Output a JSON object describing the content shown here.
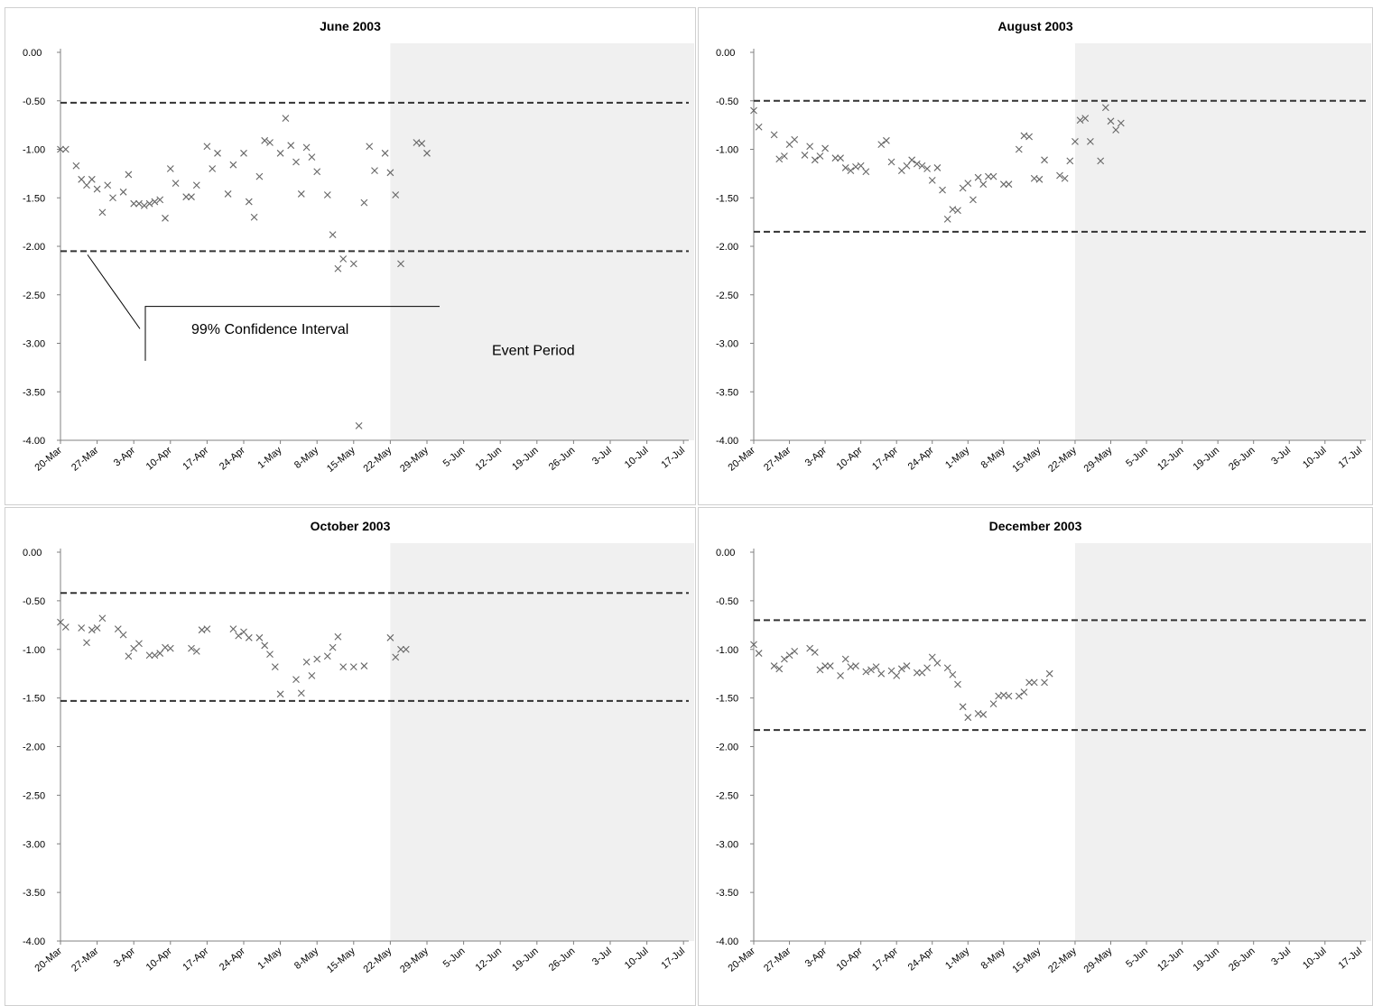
{
  "chart_data": [
    {
      "type": "scatter",
      "title": "June 2003",
      "x_ticks": [
        "20-Mar",
        "27-Mar",
        "3-Apr",
        "10-Apr",
        "17-Apr",
        "24-Apr",
        "1-May",
        "8-May",
        "15-May",
        "22-May",
        "29-May",
        "5-Jun",
        "12-Jun",
        "19-Jun",
        "26-Jun",
        "3-Jul",
        "10-Jul",
        "17-Jul"
      ],
      "y_ticks": [
        "0.00",
        "-0.50",
        "-1.00",
        "-1.50",
        "-2.00",
        "-2.50",
        "-3.00",
        "-3.50",
        "-4.00"
      ],
      "ylim": [
        -4.0,
        0.0
      ],
      "ci_upper": -0.52,
      "ci_lower": -2.05,
      "event_start_day": 63,
      "annotations": [
        "99% Confidence Interval",
        "Event Period"
      ],
      "series": [
        {
          "x_day": [
            0,
            1,
            3,
            4,
            5,
            6,
            7,
            8,
            9,
            10,
            12,
            13,
            14,
            15,
            16,
            17,
            18,
            19,
            20,
            21,
            22,
            24,
            25,
            26,
            28,
            29,
            30,
            32,
            33,
            35,
            36,
            37,
            38,
            39,
            40,
            42,
            43,
            44,
            45,
            46,
            47,
            48,
            49,
            51,
            52,
            53,
            54,
            56,
            57,
            58,
            59,
            60,
            62,
            63,
            64,
            65,
            68,
            69,
            70
          ],
          "y": [
            -1.0,
            -1.0,
            -1.17,
            -1.31,
            -1.37,
            -1.31,
            -1.41,
            -1.65,
            -1.37,
            -1.5,
            -1.44,
            -1.26,
            -1.56,
            -1.56,
            -1.58,
            -1.56,
            -1.54,
            -1.52,
            -1.71,
            -1.2,
            -1.35,
            -1.49,
            -1.49,
            -1.37,
            -0.97,
            -1.2,
            -1.04,
            -1.46,
            -1.16,
            -1.04,
            -1.54,
            -1.7,
            -1.28,
            -0.91,
            -0.93,
            -1.04,
            -0.68,
            -0.96,
            -1.13,
            -1.46,
            -0.98,
            -1.08,
            -1.23,
            -1.47,
            -1.88,
            -2.23,
            -2.13,
            -2.18,
            -3.85,
            -1.55,
            -0.97,
            -1.22,
            -1.04,
            -1.24,
            -1.47,
            -2.18,
            -0.93,
            -0.94,
            -1.04
          ]
        }
      ]
    },
    {
      "type": "scatter",
      "title": "August 2003",
      "x_ticks": [
        "20-Mar",
        "27-Mar",
        "3-Apr",
        "10-Apr",
        "17-Apr",
        "24-Apr",
        "1-May",
        "8-May",
        "15-May",
        "22-May",
        "29-May",
        "5-Jun",
        "12-Jun",
        "19-Jun",
        "26-Jun",
        "3-Jul",
        "10-Jul",
        "17-Jul"
      ],
      "y_ticks": [
        "0.00",
        "-0.50",
        "-1.00",
        "-1.50",
        "-2.00",
        "-2.50",
        "-3.00",
        "-3.50",
        "-4.00"
      ],
      "ylim": [
        -4.0,
        0.0
      ],
      "ci_upper": -0.5,
      "ci_lower": -1.85,
      "event_start_day": 63,
      "annotations": [],
      "series": [
        {
          "x_day": [
            0,
            1,
            4,
            5,
            6,
            7,
            8,
            10,
            11,
            12,
            13,
            14,
            16,
            17,
            18,
            19,
            20,
            21,
            22,
            25,
            26,
            27,
            29,
            30,
            31,
            32,
            33,
            34,
            35,
            36,
            37,
            38,
            39,
            40,
            41,
            42,
            43,
            44,
            45,
            46,
            47,
            49,
            50,
            52,
            53,
            54,
            55,
            56,
            57,
            60,
            61,
            62,
            63,
            64,
            65,
            66,
            68,
            69,
            70,
            71,
            72
          ],
          "y": [
            -0.6,
            -0.77,
            -0.85,
            -1.1,
            -1.07,
            -0.95,
            -0.9,
            -1.06,
            -0.97,
            -1.11,
            -1.07,
            -0.99,
            -1.09,
            -1.09,
            -1.19,
            -1.22,
            -1.18,
            -1.17,
            -1.23,
            -0.95,
            -0.91,
            -1.13,
            -1.22,
            -1.17,
            -1.11,
            -1.15,
            -1.17,
            -1.2,
            -1.32,
            -1.19,
            -1.42,
            -1.72,
            -1.62,
            -1.63,
            -1.4,
            -1.35,
            -1.52,
            -1.29,
            -1.36,
            -1.28,
            -1.28,
            -1.36,
            -1.36,
            -1.0,
            -0.86,
            -0.87,
            -1.3,
            -1.31,
            -1.11,
            -1.27,
            -1.3,
            -1.12,
            -0.92,
            -0.7,
            -0.68,
            -0.92,
            -1.12,
            -0.57,
            -0.71,
            -0.8,
            -0.73
          ]
        }
      ]
    },
    {
      "type": "scatter",
      "title": "October 2003",
      "x_ticks": [
        "20-Mar",
        "27-Mar",
        "3-Apr",
        "10-Apr",
        "17-Apr",
        "24-Apr",
        "1-May",
        "8-May",
        "15-May",
        "22-May",
        "29-May",
        "5-Jun",
        "12-Jun",
        "19-Jun",
        "26-Jun",
        "3-Jul",
        "10-Jul",
        "17-Jul"
      ],
      "y_ticks": [
        "0.00",
        "-0.50",
        "-1.00",
        "-1.50",
        "-2.00",
        "-2.50",
        "-3.00",
        "-3.50",
        "-4.00"
      ],
      "ylim": [
        -4.0,
        0.0
      ],
      "ci_upper": -0.42,
      "ci_lower": -1.53,
      "event_start_day": 63,
      "annotations": [],
      "series": [
        {
          "x_day": [
            0,
            1,
            4,
            5,
            6,
            7,
            8,
            11,
            12,
            13,
            14,
            15,
            17,
            18,
            19,
            20,
            21,
            25,
            26,
            27,
            28,
            33,
            34,
            35,
            36,
            38,
            39,
            40,
            41,
            42,
            45,
            46,
            47,
            48,
            49,
            51,
            52,
            53,
            54,
            56,
            58,
            63,
            64,
            65,
            66
          ],
          "y": [
            -0.72,
            -0.77,
            -0.78,
            -0.93,
            -0.8,
            -0.78,
            -0.68,
            -0.79,
            -0.85,
            -1.07,
            -0.99,
            -0.94,
            -1.06,
            -1.06,
            -1.04,
            -0.98,
            -0.99,
            -0.99,
            -1.02,
            -0.8,
            -0.79,
            -0.79,
            -0.86,
            -0.82,
            -0.88,
            -0.88,
            -0.96,
            -1.05,
            -1.18,
            -1.46,
            -1.31,
            -1.45,
            -1.13,
            -1.27,
            -1.1,
            -1.07,
            -0.98,
            -0.87,
            -1.18,
            -1.18,
            -1.17,
            -0.88,
            -1.08,
            -1.0,
            -1.0
          ]
        }
      ]
    },
    {
      "type": "scatter",
      "title": "December 2003",
      "x_ticks": [
        "20-Mar",
        "27-Mar",
        "3-Apr",
        "10-Apr",
        "17-Apr",
        "24-Apr",
        "1-May",
        "8-May",
        "15-May",
        "22-May",
        "29-May",
        "5-Jun",
        "12-Jun",
        "19-Jun",
        "26-Jun",
        "3-Jul",
        "10-Jul",
        "17-Jul"
      ],
      "y_ticks": [
        "0.00",
        "-0.50",
        "-1.00",
        "-1.50",
        "-2.00",
        "-2.50",
        "-3.00",
        "-3.50",
        "-4.00"
      ],
      "ylim": [
        -4.0,
        0.0
      ],
      "ci_upper": -0.7,
      "ci_lower": -1.83,
      "event_start_day": 63,
      "annotations": [],
      "series": [
        {
          "x_day": [
            0,
            1,
            4,
            5,
            6,
            7,
            8,
            11,
            12,
            13,
            14,
            15,
            17,
            18,
            19,
            20,
            22,
            23,
            24,
            25,
            27,
            28,
            29,
            30,
            32,
            33,
            34,
            35,
            36,
            38,
            39,
            40,
            41,
            42,
            44,
            45,
            47,
            48,
            49,
            50,
            52,
            53,
            54,
            55,
            57,
            58
          ],
          "y": [
            -0.95,
            -1.04,
            -1.17,
            -1.2,
            -1.1,
            -1.06,
            -1.02,
            -0.99,
            -1.03,
            -1.21,
            -1.17,
            -1.17,
            -1.27,
            -1.1,
            -1.18,
            -1.17,
            -1.23,
            -1.21,
            -1.18,
            -1.25,
            -1.22,
            -1.27,
            -1.2,
            -1.17,
            -1.24,
            -1.24,
            -1.19,
            -1.08,
            -1.14,
            -1.19,
            -1.26,
            -1.36,
            -1.59,
            -1.7,
            -1.66,
            -1.67,
            -1.56,
            -1.48,
            -1.47,
            -1.48,
            -1.48,
            -1.44,
            -1.34,
            -1.34,
            -1.34,
            -1.25
          ]
        }
      ]
    }
  ]
}
